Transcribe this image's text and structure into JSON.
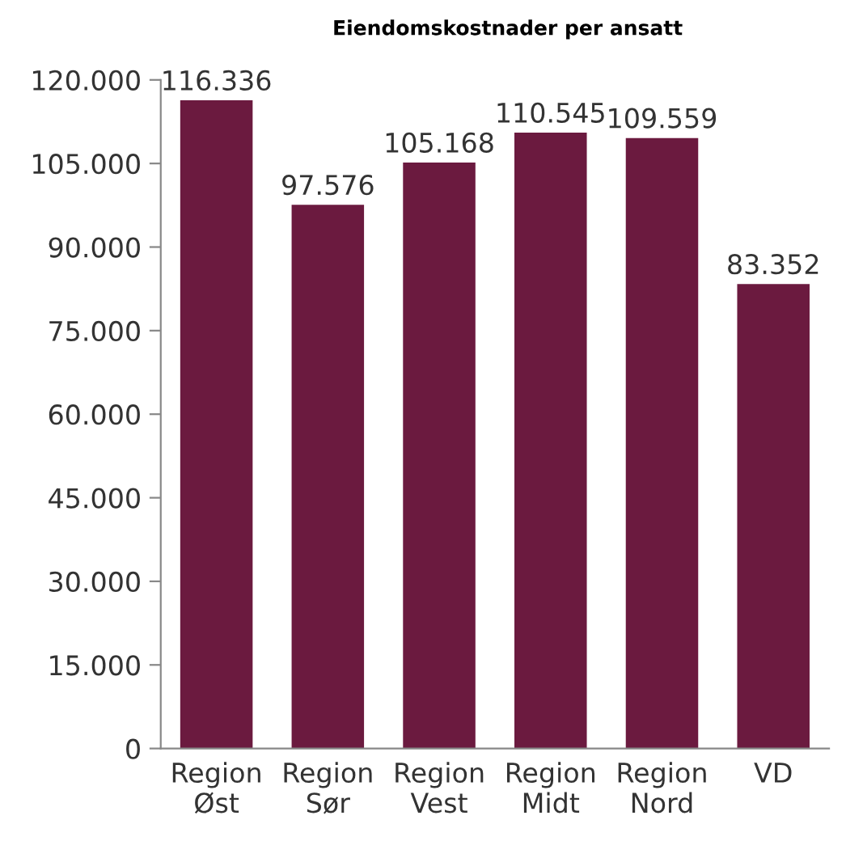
{
  "chart_data": {
    "type": "bar",
    "title": "Eiendomskostnader per ansatt",
    "categories": [
      "Region\nØst",
      "Region\nSør",
      "Region\nVest",
      "Region\nMidt",
      "Region\nNord",
      "VD"
    ],
    "values": [
      116336,
      97576,
      105168,
      110545,
      109559,
      83352
    ],
    "value_labels": [
      "116.336",
      "97.576",
      "105.168",
      "110.545",
      "109.559",
      "83.352"
    ],
    "color": "#6b1a3f",
    "ylim": [
      0,
      120000
    ],
    "yticks": [
      {
        "value": 0,
        "label": "0"
      },
      {
        "value": 15000,
        "label": "15.000"
      },
      {
        "value": 30000,
        "label": "30.000"
      },
      {
        "value": 45000,
        "label": "45.000"
      },
      {
        "value": 60000,
        "label": "60.000"
      },
      {
        "value": 75000,
        "label": "75.000"
      },
      {
        "value": 90000,
        "label": "90.000"
      },
      {
        "value": 105000,
        "label": "105.000"
      },
      {
        "value": 120000,
        "label": "120.000"
      }
    ],
    "grid": false
  }
}
